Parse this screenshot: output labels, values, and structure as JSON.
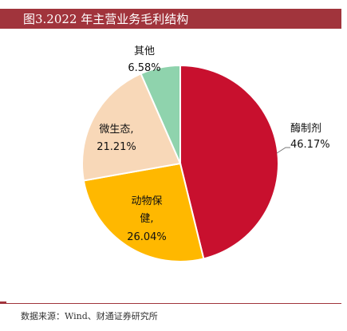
{
  "header": {
    "title": "图3.2022 年主营业务毛利结构"
  },
  "footer": {
    "source": "数据来源：Wind、财通证券研究所"
  },
  "chart_data": {
    "type": "pie",
    "title": "图3.2022 年主营业务毛利结构",
    "slices": [
      {
        "name": "酶制剂",
        "value": 46.17,
        "label": "46.17%",
        "color": "#c8102e"
      },
      {
        "name": "动物保健",
        "value": 26.04,
        "label": "26.04%",
        "color": "#ffb800"
      },
      {
        "name": "微生态",
        "value": 21.21,
        "label": "21.21%",
        "color": "#f8d8b8"
      },
      {
        "name": "其他",
        "value": 6.58,
        "label": "6.58%",
        "color": "#8fd3ad"
      }
    ],
    "start": "12 o'clock",
    "direction": "clockwise"
  }
}
